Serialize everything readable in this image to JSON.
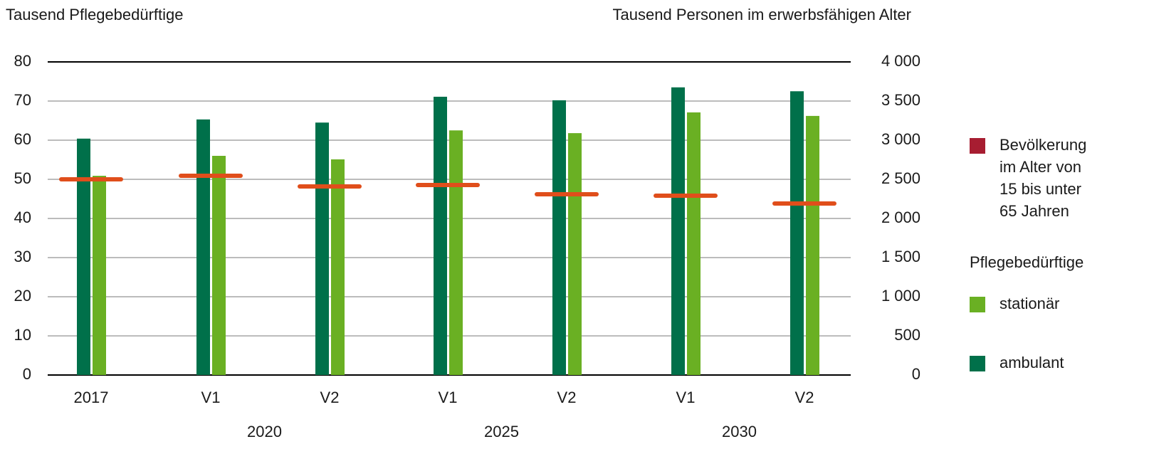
{
  "chart_data": {
    "type": "bar",
    "y_label": "Tausend Pflegebedürftige",
    "y2_label": "Tausend Personen im erwerbsfähigen Alter",
    "categories": [
      "2017",
      "V1",
      "V2",
      "V1",
      "V2",
      "V1",
      "V2"
    ],
    "groups": [
      {
        "label": "2020",
        "categories": [
          1,
          2
        ]
      },
      {
        "label": "2025",
        "categories": [
          3,
          4
        ]
      },
      {
        "label": "2030",
        "categories": [
          5,
          6
        ]
      }
    ],
    "series": [
      {
        "name": "ambulant",
        "color": "#00704a",
        "values": [
          60.4,
          65.3,
          64.5,
          71.1,
          70.2,
          73.5,
          72.5
        ]
      },
      {
        "name": "stationär",
        "color": "#6ab023",
        "values": [
          50.9,
          56,
          55.1,
          62.5,
          61.8,
          67.1,
          66.2
        ]
      },
      {
        "name": "Bevölkerung im Alter von 15 bis unter 65 Jahren",
        "color": "#e04e1b",
        "legend_color": "#a71d31",
        "type": "line-marker",
        "axis": "y2",
        "values": [
          2500,
          2545,
          2409,
          2427,
          2309,
          2291,
          2191
        ]
      }
    ],
    "legend_title": "Pflegebedürftige",
    "ylim": [
      0,
      80
    ],
    "yticks": [
      0,
      10,
      20,
      30,
      40,
      50,
      60,
      70,
      80
    ],
    "y2lim": [
      0,
      4000
    ],
    "y2ticks": [
      0,
      500,
      {
        "value": 1000,
        "label": "1 000"
      },
      {
        "value": 1500,
        "label": "1 500"
      },
      {
        "value": 2000,
        "label": "2 000"
      },
      {
        "value": 2500,
        "label": "2 500"
      },
      {
        "value": 3000,
        "label": "3 000"
      },
      {
        "value": 3500,
        "label": "3 500"
      },
      {
        "value": 4000,
        "label": "4 000"
      }
    ],
    "grid": true
  }
}
